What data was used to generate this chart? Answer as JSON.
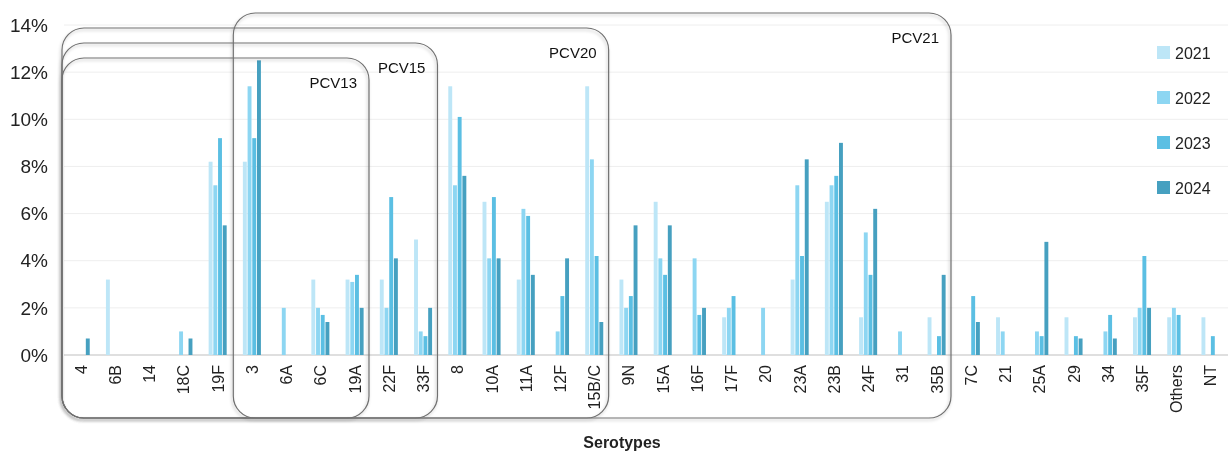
{
  "chart_data": {
    "type": "bar",
    "xlabel": "Serotypes",
    "categories": [
      "4",
      "6B",
      "14",
      "18C",
      "19F",
      "3",
      "6A",
      "6C",
      "19A",
      "22F",
      "33F",
      "8",
      "10A",
      "11A",
      "12F",
      "15B/C",
      "9N",
      "15A",
      "16F",
      "17F",
      "20",
      "23A",
      "23B",
      "24F",
      "31",
      "35B",
      "7C",
      "21",
      "25A",
      "29",
      "34",
      "35F",
      "Others",
      "NT"
    ],
    "series": [
      {
        "name": "2021",
        "color": "#bde6f7",
        "values": [
          null,
          3.2,
          null,
          null,
          8.2,
          8.2,
          null,
          3.2,
          3.2,
          3.2,
          4.9,
          11.4,
          6.5,
          3.2,
          null,
          11.4,
          3.2,
          6.5,
          null,
          1.6,
          null,
          3.2,
          6.5,
          1.6,
          null,
          1.6,
          null,
          1.6,
          null,
          1.6,
          null,
          1.6,
          1.6,
          1.6
        ]
      },
      {
        "name": "2022",
        "color": "#8dd6f2",
        "values": [
          null,
          null,
          null,
          1.0,
          7.2,
          11.4,
          2.0,
          2.0,
          3.1,
          2.0,
          1.0,
          7.2,
          4.1,
          6.2,
          1.0,
          8.3,
          2.0,
          4.1,
          4.1,
          2.0,
          2.0,
          7.2,
          7.2,
          5.2,
          1.0,
          null,
          null,
          1.0,
          1.0,
          null,
          1.0,
          2.0,
          2.0,
          null
        ]
      },
      {
        "name": "2023",
        "color": "#5bbfe3",
        "values": [
          null,
          null,
          null,
          null,
          9.2,
          9.2,
          null,
          1.7,
          3.4,
          6.7,
          0.8,
          10.1,
          6.7,
          5.9,
          2.5,
          4.2,
          2.5,
          3.4,
          1.7,
          2.5,
          null,
          4.2,
          7.6,
          3.4,
          null,
          0.8,
          2.5,
          null,
          0.8,
          0.8,
          1.7,
          4.2,
          1.7,
          0.8
        ]
      },
      {
        "name": "2024",
        "color": "#46a0c0",
        "values": [
          0.7,
          null,
          null,
          0.7,
          5.5,
          12.5,
          null,
          1.4,
          2.0,
          4.1,
          2.0,
          7.6,
          4.1,
          3.4,
          4.1,
          1.4,
          5.5,
          5.5,
          2.0,
          null,
          null,
          8.3,
          9.0,
          6.2,
          null,
          3.4,
          1.4,
          null,
          4.8,
          0.7,
          0.7,
          2.0,
          null,
          null
        ]
      }
    ],
    "ylim": [
      0,
      14
    ],
    "yticks": [
      {
        "value": 0,
        "label": "0%"
      },
      {
        "value": 2,
        "label": "2%"
      },
      {
        "value": 4,
        "label": "4%"
      },
      {
        "value": 6,
        "label": "6%"
      },
      {
        "value": 8,
        "label": "8%"
      },
      {
        "value": 10,
        "label": "10%"
      },
      {
        "value": 12,
        "label": "12%"
      },
      {
        "value": 14,
        "label": "14%"
      }
    ],
    "grid": "y",
    "legend": "right",
    "annotations": [
      "PCV13",
      "PCV15",
      "PCV20",
      "PCV21"
    ]
  }
}
